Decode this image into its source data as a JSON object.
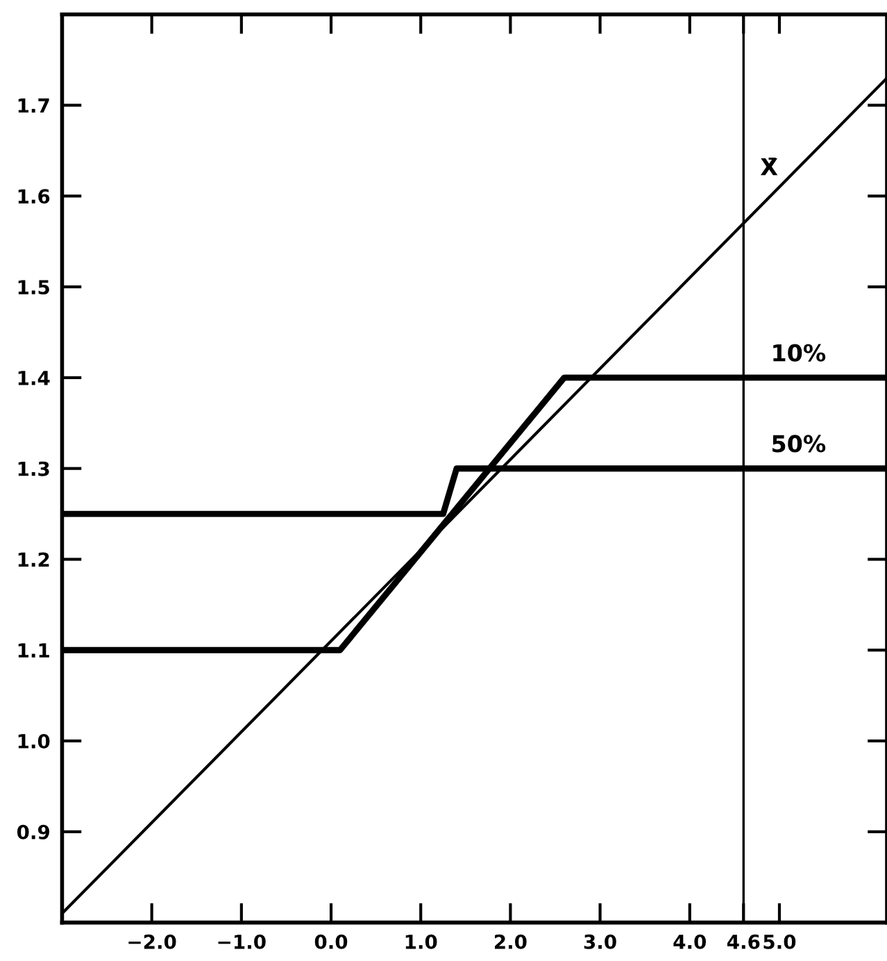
{
  "chart_data": {
    "type": "line",
    "xlim": [
      -3.0,
      6.2
    ],
    "ylim": [
      0.8,
      1.8
    ],
    "xticks": [
      {
        "value": -2.0,
        "label": "−2.0"
      },
      {
        "value": -1.0,
        "label": "−1.0"
      },
      {
        "value": 0.0,
        "label": "0.0"
      },
      {
        "value": 1.0,
        "label": "1.0"
      },
      {
        "value": 2.0,
        "label": "2.0"
      },
      {
        "value": 3.0,
        "label": "3.0"
      },
      {
        "value": 4.0,
        "label": "4.0"
      },
      {
        "value": 4.6,
        "label": "4.6"
      },
      {
        "value": 5.0,
        "label": "5.0"
      }
    ],
    "yticks": [
      0.9,
      {
        "value": 1.0,
        "label": "1.0"
      },
      1.1,
      1.2,
      1.3,
      1.4,
      1.5,
      1.6,
      1.7
    ],
    "series": [
      {
        "name": "X̄",
        "color": "#000000",
        "x": [
          -3.0,
          6.2
        ],
        "values": [
          0.81,
          1.73
        ]
      },
      {
        "name": "10%",
        "color": "#000000",
        "x": [
          -3.0,
          0.1,
          2.6,
          6.2
        ],
        "values": [
          1.1,
          1.1,
          1.4,
          1.4
        ]
      },
      {
        "name": "50%",
        "color": "#000000",
        "x": [
          -3.0,
          1.25,
          1.4,
          6.2
        ],
        "values": [
          1.25,
          1.25,
          1.3,
          1.3
        ]
      }
    ],
    "ref_lines": [
      {
        "axis": "x",
        "value": 4.6,
        "color": "#000000"
      }
    ],
    "grid": false,
    "legend": false,
    "marker": "none",
    "line_style": "solid"
  }
}
